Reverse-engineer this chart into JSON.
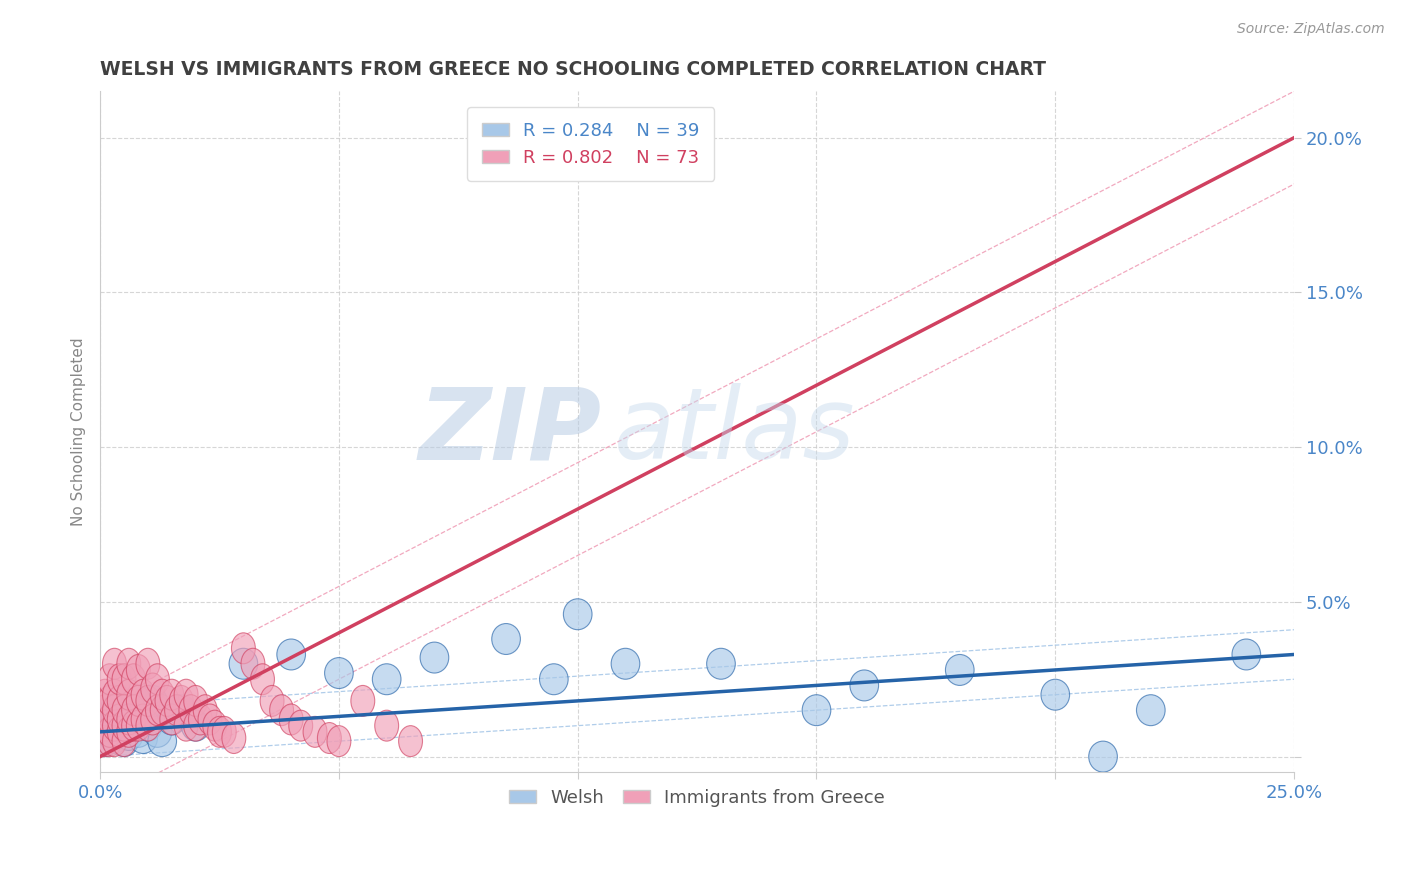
{
  "title": "WELSH VS IMMIGRANTS FROM GREECE NO SCHOOLING COMPLETED CORRELATION CHART",
  "source": "Source: ZipAtlas.com",
  "ylabel": "No Schooling Completed",
  "xlim": [
    0,
    0.25
  ],
  "ylim": [
    -0.005,
    0.215
  ],
  "xticks": [
    0.0,
    0.05,
    0.1,
    0.15,
    0.2,
    0.25
  ],
  "yticks": [
    0.0,
    0.05,
    0.1,
    0.15,
    0.2
  ],
  "welsh_color": "#a8c8e8",
  "wales_line_color": "#2563a8",
  "greece_color": "#f0a0b8",
  "greece_line_color": "#d04060",
  "legend_R1": "R = 0.284",
  "legend_N1": "N = 39",
  "legend_R2": "R = 0.802",
  "legend_N2": "N = 73",
  "background_color": "#ffffff",
  "grid_color": "#cccccc",
  "title_color": "#404040",
  "tick_label_color": "#4a86c8",
  "welsh_x": [
    0.001,
    0.002,
    0.002,
    0.003,
    0.003,
    0.003,
    0.004,
    0.004,
    0.005,
    0.005,
    0.006,
    0.006,
    0.007,
    0.008,
    0.009,
    0.01,
    0.011,
    0.012,
    0.013,
    0.015,
    0.017,
    0.02,
    0.03,
    0.04,
    0.05,
    0.06,
    0.07,
    0.085,
    0.095,
    0.1,
    0.11,
    0.13,
    0.15,
    0.16,
    0.18,
    0.2,
    0.21,
    0.22,
    0.24
  ],
  "welsh_y": [
    0.005,
    0.008,
    0.012,
    0.006,
    0.01,
    0.015,
    0.008,
    0.012,
    0.005,
    0.01,
    0.007,
    0.012,
    0.01,
    0.008,
    0.006,
    0.01,
    0.018,
    0.008,
    0.005,
    0.012,
    0.015,
    0.01,
    0.03,
    0.033,
    0.027,
    0.025,
    0.032,
    0.038,
    0.025,
    0.046,
    0.03,
    0.03,
    0.015,
    0.023,
    0.028,
    0.02,
    0.0,
    0.015,
    0.033
  ],
  "greece_x": [
    0.001,
    0.001,
    0.001,
    0.001,
    0.002,
    0.002,
    0.002,
    0.002,
    0.002,
    0.003,
    0.003,
    0.003,
    0.003,
    0.003,
    0.004,
    0.004,
    0.004,
    0.004,
    0.005,
    0.005,
    0.005,
    0.005,
    0.006,
    0.006,
    0.006,
    0.006,
    0.007,
    0.007,
    0.007,
    0.008,
    0.008,
    0.008,
    0.009,
    0.009,
    0.01,
    0.01,
    0.01,
    0.011,
    0.011,
    0.012,
    0.012,
    0.013,
    0.013,
    0.014,
    0.015,
    0.015,
    0.016,
    0.017,
    0.018,
    0.018,
    0.019,
    0.02,
    0.02,
    0.021,
    0.022,
    0.023,
    0.024,
    0.025,
    0.026,
    0.028,
    0.03,
    0.032,
    0.034,
    0.036,
    0.038,
    0.04,
    0.042,
    0.045,
    0.048,
    0.05,
    0.055,
    0.06,
    0.065
  ],
  "greece_y": [
    0.005,
    0.01,
    0.015,
    0.02,
    0.005,
    0.008,
    0.012,
    0.018,
    0.025,
    0.005,
    0.01,
    0.015,
    0.02,
    0.03,
    0.008,
    0.012,
    0.018,
    0.025,
    0.005,
    0.01,
    0.015,
    0.025,
    0.008,
    0.012,
    0.02,
    0.03,
    0.01,
    0.015,
    0.025,
    0.01,
    0.018,
    0.028,
    0.012,
    0.02,
    0.01,
    0.018,
    0.03,
    0.012,
    0.022,
    0.015,
    0.025,
    0.015,
    0.02,
    0.018,
    0.012,
    0.02,
    0.015,
    0.018,
    0.01,
    0.02,
    0.015,
    0.01,
    0.018,
    0.012,
    0.015,
    0.012,
    0.01,
    0.008,
    0.008,
    0.006,
    0.035,
    0.03,
    0.025,
    0.018,
    0.015,
    0.012,
    0.01,
    0.008,
    0.006,
    0.005,
    0.018,
    0.01,
    0.005
  ],
  "greece_trend": [
    0.0,
    0.25
  ],
  "greece_trend_y": [
    0.0,
    0.2
  ],
  "welsh_trend": [
    0.0,
    0.25
  ],
  "welsh_trend_y": [
    0.008,
    0.033
  ],
  "watermark_zip": "ZIP",
  "watermark_atlas": "atlas",
  "watermark_color_zip": "#c0d8f0",
  "watermark_color_atlas": "#b0c8e0"
}
